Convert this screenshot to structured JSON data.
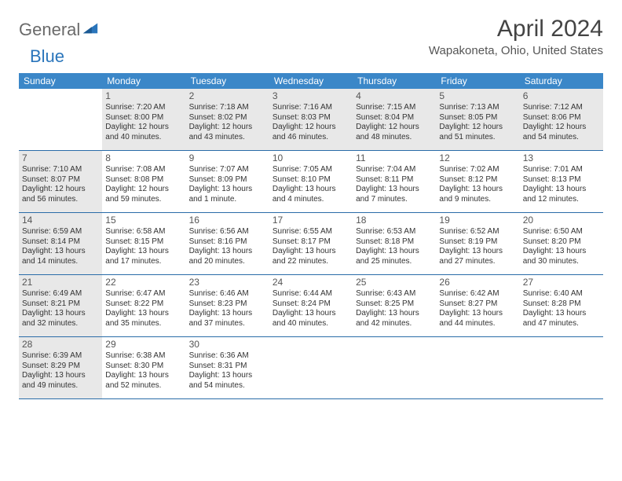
{
  "logo": {
    "part1": "General",
    "part2": "Blue"
  },
  "title": "April 2024",
  "location": "Wapakoneta, Ohio, United States",
  "weekday_labels": [
    "Sunday",
    "Monday",
    "Tuesday",
    "Wednesday",
    "Thursday",
    "Friday",
    "Saturday"
  ],
  "header_bg": "#3b87c8",
  "border_color": "#2a6ca8",
  "shaded_bg": "#e8e8e8",
  "weeks": [
    [
      {
        "num": "",
        "shaded": false,
        "sunrise": "",
        "sunset": "",
        "daylight": ""
      },
      {
        "num": "1",
        "shaded": true,
        "sunrise": "Sunrise: 7:20 AM",
        "sunset": "Sunset: 8:00 PM",
        "daylight": "Daylight: 12 hours and 40 minutes."
      },
      {
        "num": "2",
        "shaded": true,
        "sunrise": "Sunrise: 7:18 AM",
        "sunset": "Sunset: 8:02 PM",
        "daylight": "Daylight: 12 hours and 43 minutes."
      },
      {
        "num": "3",
        "shaded": true,
        "sunrise": "Sunrise: 7:16 AM",
        "sunset": "Sunset: 8:03 PM",
        "daylight": "Daylight: 12 hours and 46 minutes."
      },
      {
        "num": "4",
        "shaded": true,
        "sunrise": "Sunrise: 7:15 AM",
        "sunset": "Sunset: 8:04 PM",
        "daylight": "Daylight: 12 hours and 48 minutes."
      },
      {
        "num": "5",
        "shaded": true,
        "sunrise": "Sunrise: 7:13 AM",
        "sunset": "Sunset: 8:05 PM",
        "daylight": "Daylight: 12 hours and 51 minutes."
      },
      {
        "num": "6",
        "shaded": true,
        "sunrise": "Sunrise: 7:12 AM",
        "sunset": "Sunset: 8:06 PM",
        "daylight": "Daylight: 12 hours and 54 minutes."
      }
    ],
    [
      {
        "num": "7",
        "shaded": true,
        "sunrise": "Sunrise: 7:10 AM",
        "sunset": "Sunset: 8:07 PM",
        "daylight": "Daylight: 12 hours and 56 minutes."
      },
      {
        "num": "8",
        "shaded": false,
        "sunrise": "Sunrise: 7:08 AM",
        "sunset": "Sunset: 8:08 PM",
        "daylight": "Daylight: 12 hours and 59 minutes."
      },
      {
        "num": "9",
        "shaded": false,
        "sunrise": "Sunrise: 7:07 AM",
        "sunset": "Sunset: 8:09 PM",
        "daylight": "Daylight: 13 hours and 1 minute."
      },
      {
        "num": "10",
        "shaded": false,
        "sunrise": "Sunrise: 7:05 AM",
        "sunset": "Sunset: 8:10 PM",
        "daylight": "Daylight: 13 hours and 4 minutes."
      },
      {
        "num": "11",
        "shaded": false,
        "sunrise": "Sunrise: 7:04 AM",
        "sunset": "Sunset: 8:11 PM",
        "daylight": "Daylight: 13 hours and 7 minutes."
      },
      {
        "num": "12",
        "shaded": false,
        "sunrise": "Sunrise: 7:02 AM",
        "sunset": "Sunset: 8:12 PM",
        "daylight": "Daylight: 13 hours and 9 minutes."
      },
      {
        "num": "13",
        "shaded": false,
        "sunrise": "Sunrise: 7:01 AM",
        "sunset": "Sunset: 8:13 PM",
        "daylight": "Daylight: 13 hours and 12 minutes."
      }
    ],
    [
      {
        "num": "14",
        "shaded": true,
        "sunrise": "Sunrise: 6:59 AM",
        "sunset": "Sunset: 8:14 PM",
        "daylight": "Daylight: 13 hours and 14 minutes."
      },
      {
        "num": "15",
        "shaded": false,
        "sunrise": "Sunrise: 6:58 AM",
        "sunset": "Sunset: 8:15 PM",
        "daylight": "Daylight: 13 hours and 17 minutes."
      },
      {
        "num": "16",
        "shaded": false,
        "sunrise": "Sunrise: 6:56 AM",
        "sunset": "Sunset: 8:16 PM",
        "daylight": "Daylight: 13 hours and 20 minutes."
      },
      {
        "num": "17",
        "shaded": false,
        "sunrise": "Sunrise: 6:55 AM",
        "sunset": "Sunset: 8:17 PM",
        "daylight": "Daylight: 13 hours and 22 minutes."
      },
      {
        "num": "18",
        "shaded": false,
        "sunrise": "Sunrise: 6:53 AM",
        "sunset": "Sunset: 8:18 PM",
        "daylight": "Daylight: 13 hours and 25 minutes."
      },
      {
        "num": "19",
        "shaded": false,
        "sunrise": "Sunrise: 6:52 AM",
        "sunset": "Sunset: 8:19 PM",
        "daylight": "Daylight: 13 hours and 27 minutes."
      },
      {
        "num": "20",
        "shaded": false,
        "sunrise": "Sunrise: 6:50 AM",
        "sunset": "Sunset: 8:20 PM",
        "daylight": "Daylight: 13 hours and 30 minutes."
      }
    ],
    [
      {
        "num": "21",
        "shaded": true,
        "sunrise": "Sunrise: 6:49 AM",
        "sunset": "Sunset: 8:21 PM",
        "daylight": "Daylight: 13 hours and 32 minutes."
      },
      {
        "num": "22",
        "shaded": false,
        "sunrise": "Sunrise: 6:47 AM",
        "sunset": "Sunset: 8:22 PM",
        "daylight": "Daylight: 13 hours and 35 minutes."
      },
      {
        "num": "23",
        "shaded": false,
        "sunrise": "Sunrise: 6:46 AM",
        "sunset": "Sunset: 8:23 PM",
        "daylight": "Daylight: 13 hours and 37 minutes."
      },
      {
        "num": "24",
        "shaded": false,
        "sunrise": "Sunrise: 6:44 AM",
        "sunset": "Sunset: 8:24 PM",
        "daylight": "Daylight: 13 hours and 40 minutes."
      },
      {
        "num": "25",
        "shaded": false,
        "sunrise": "Sunrise: 6:43 AM",
        "sunset": "Sunset: 8:25 PM",
        "daylight": "Daylight: 13 hours and 42 minutes."
      },
      {
        "num": "26",
        "shaded": false,
        "sunrise": "Sunrise: 6:42 AM",
        "sunset": "Sunset: 8:27 PM",
        "daylight": "Daylight: 13 hours and 44 minutes."
      },
      {
        "num": "27",
        "shaded": false,
        "sunrise": "Sunrise: 6:40 AM",
        "sunset": "Sunset: 8:28 PM",
        "daylight": "Daylight: 13 hours and 47 minutes."
      }
    ],
    [
      {
        "num": "28",
        "shaded": true,
        "sunrise": "Sunrise: 6:39 AM",
        "sunset": "Sunset: 8:29 PM",
        "daylight": "Daylight: 13 hours and 49 minutes."
      },
      {
        "num": "29",
        "shaded": false,
        "sunrise": "Sunrise: 6:38 AM",
        "sunset": "Sunset: 8:30 PM",
        "daylight": "Daylight: 13 hours and 52 minutes."
      },
      {
        "num": "30",
        "shaded": false,
        "sunrise": "Sunrise: 6:36 AM",
        "sunset": "Sunset: 8:31 PM",
        "daylight": "Daylight: 13 hours and 54 minutes."
      },
      {
        "num": "",
        "shaded": false,
        "sunrise": "",
        "sunset": "",
        "daylight": ""
      },
      {
        "num": "",
        "shaded": false,
        "sunrise": "",
        "sunset": "",
        "daylight": ""
      },
      {
        "num": "",
        "shaded": false,
        "sunrise": "",
        "sunset": "",
        "daylight": ""
      },
      {
        "num": "",
        "shaded": false,
        "sunrise": "",
        "sunset": "",
        "daylight": ""
      }
    ]
  ]
}
